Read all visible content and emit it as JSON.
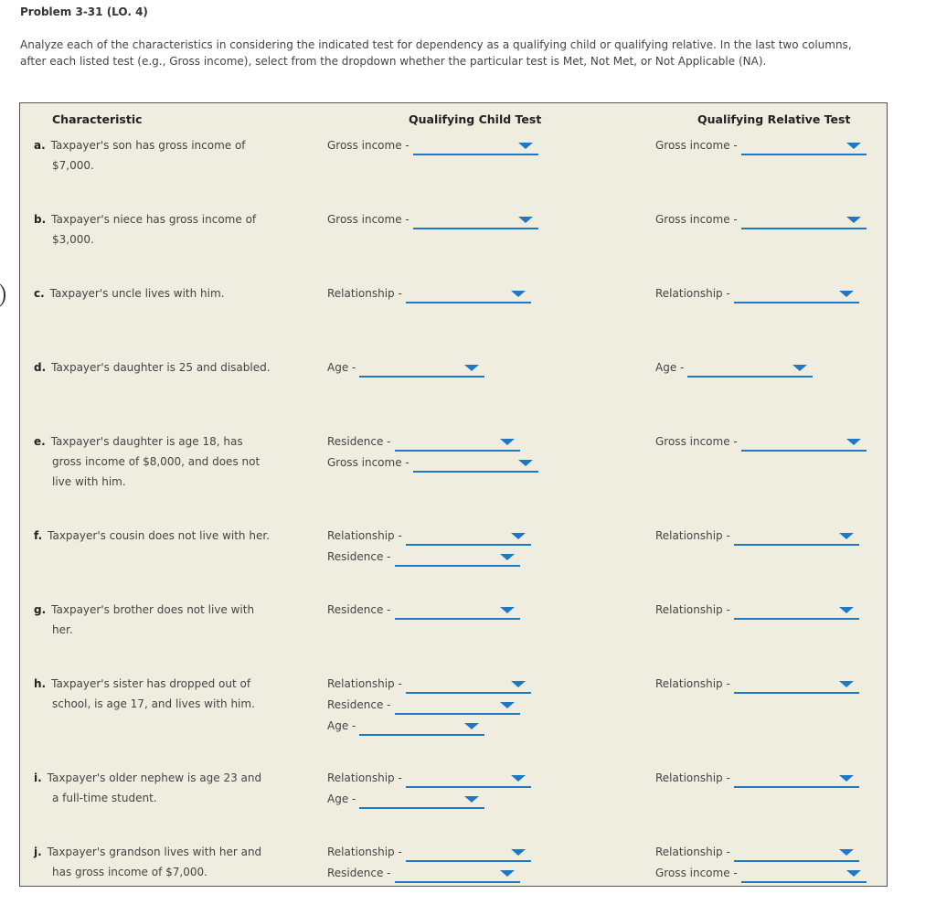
{
  "problem_title": "Problem 3-31 (LO. 4)",
  "instructions": "Analyze each of the characteristics in considering the indicated test for dependency as a qualifying child or qualifying relative. In the last two columns, after each listed test (e.g., Gross income), select from the dropdown whether the particular test is Met, Not Met, or Not Applicable (NA).",
  "headers": {
    "characteristic": "Characteristic",
    "qualifying_child": "Qualifying Child Test",
    "qualifying_relative": "Qualifying Relative Test"
  },
  "colors": {
    "dropdown_accent": "#1f78c4",
    "panel_background": "#efece0"
  },
  "rows": [
    {
      "letter": "a.",
      "line1": "Taxpayer's son has gross income of",
      "line2": "$7,000.",
      "line3": "",
      "qc": [
        "Gross income -"
      ],
      "qr": [
        "Gross income -"
      ]
    },
    {
      "letter": "b.",
      "line1": "Taxpayer's niece has gross income of",
      "line2": "$3,000.",
      "line3": "",
      "qc": [
        "Gross income -"
      ],
      "qr": [
        "Gross income -"
      ]
    },
    {
      "letter": "c.",
      "line1": "Taxpayer's uncle lives with him.",
      "line2": "",
      "line3": "",
      "qc": [
        "Relationship -"
      ],
      "qr": [
        "Relationship -"
      ]
    },
    {
      "letter": "d.",
      "line1": "Taxpayer's daughter is 25 and disabled.",
      "line2": "",
      "line3": "",
      "qc": [
        "Age -"
      ],
      "qr": [
        "Age -"
      ]
    },
    {
      "letter": "e.",
      "line1": "Taxpayer's daughter is age 18, has",
      "line2": "gross income of $8,000, and does not",
      "line3": "live with him.",
      "qc": [
        "Residence -",
        "Gross income -"
      ],
      "qr": [
        "Gross income -"
      ]
    },
    {
      "letter": "f.",
      "line1": "Taxpayer's cousin does not live with her.",
      "line2": "",
      "line3": "",
      "qc": [
        "Relationship -",
        "Residence -"
      ],
      "qr": [
        "Relationship -"
      ]
    },
    {
      "letter": "g.",
      "line1": "Taxpayer's brother does not live with",
      "line2": "her.",
      "line3": "",
      "qc": [
        "Residence -"
      ],
      "qr": [
        "Relationship -"
      ]
    },
    {
      "letter": "h.",
      "line1": "Taxpayer's sister has dropped out of",
      "line2": "school, is age 17, and lives with him.",
      "line3": "",
      "qc": [
        "Relationship -",
        "Residence -",
        "Age -"
      ],
      "qr": [
        "Relationship -"
      ]
    },
    {
      "letter": "i.",
      "line1": "Taxpayer's older nephew is age 23 and",
      "line2": "a full-time student.",
      "line3": "",
      "qc": [
        "Relationship -",
        "Age -"
      ],
      "qr": [
        "Relationship -"
      ]
    },
    {
      "letter": "j.",
      "line1": "Taxpayer's grandson lives with her and",
      "line2": "has gross income of $7,000.",
      "line3": "",
      "qc": [
        "Relationship -",
        "Residence -"
      ],
      "qr": [
        "Relationship -",
        "Gross income -"
      ]
    }
  ]
}
